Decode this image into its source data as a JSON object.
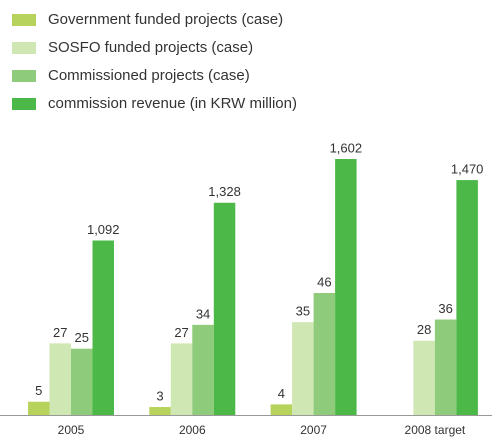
{
  "chart_data": {
    "type": "bar",
    "categories": [
      "2005",
      "2006",
      "2007",
      "2008 target"
    ],
    "series": [
      {
        "name": "Government funded projects (case)",
        "color": "#b7d35b",
        "values": [
          5,
          3,
          4,
          null
        ]
      },
      {
        "name": "SOSFO funded projects (case)",
        "color": "#cfe7b3",
        "values": [
          27,
          27,
          35,
          28
        ]
      },
      {
        "name": "Commissioned projects (case)",
        "color": "#8ecb7b",
        "values": [
          25,
          34,
          46,
          36
        ]
      },
      {
        "name": "commission revenue (in KRW million)",
        "color": "#4cb848",
        "axis": "y2",
        "values": [
          1092,
          1328,
          1602,
          1470
        ],
        "value_labels": [
          "1,092",
          "1,328",
          "1,602",
          "1,470"
        ]
      }
    ]
  }
}
